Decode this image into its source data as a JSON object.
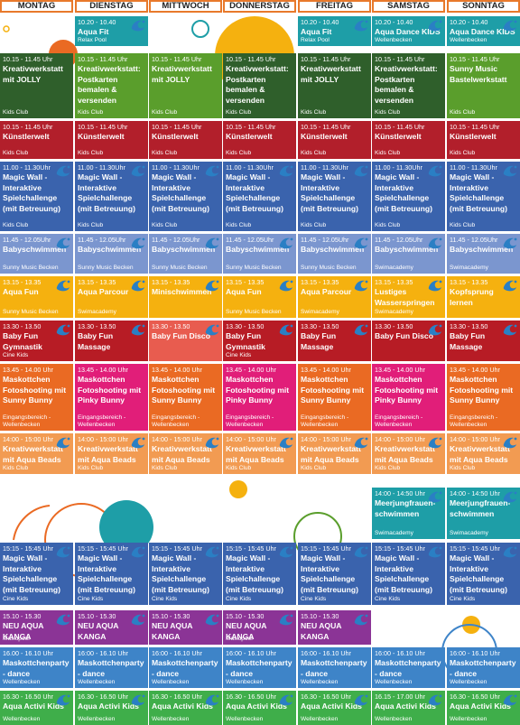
{
  "days": [
    "MONTAG",
    "DIENSTAG",
    "MITTWOCH",
    "DONNERSTAG",
    "FREITAG",
    "SAMSTAG",
    "SONNTAG"
  ],
  "colors": {
    "teal": "#1e9ea7",
    "green": "#5a9e2c",
    "darkgreen": "#2f5f2b",
    "red": "#b21f2b",
    "blue": "#3a63ad",
    "lightblue": "#7b96cf",
    "yellow": "#f5b10f",
    "darkred": "#b71c25",
    "salmon": "#e85c4f",
    "orange": "#ea6a23",
    "pink": "#e11e79",
    "lightorange": "#f29b52",
    "purple": "#8b3496",
    "mblue": "#3e84c8",
    "agreen": "#3fae4a",
    "header_border": "#e8792b"
  },
  "cells": [
    {
      "c": 1,
      "r": 0,
      "time": "10.20 - 10.40",
      "title": "Aqua Fit",
      "loc": "Relax Pool",
      "color": "teal",
      "wave": true
    },
    {
      "c": 4,
      "r": 0,
      "time": "10.20 - 10.40",
      "title": "Aqua Fit",
      "loc": "Relax Pool",
      "color": "teal",
      "wave": true
    },
    {
      "c": 5,
      "r": 0,
      "time": "10.20 - 10.40",
      "title": "Aqua Dance KIDS",
      "loc": "Wellenbecken",
      "color": "teal",
      "wave": true
    },
    {
      "c": 6,
      "r": 0,
      "time": "10.20 - 10.40",
      "title": "Aqua Dance KIDS",
      "loc": "Wellenbecken",
      "color": "teal",
      "wave": true
    },
    {
      "c": 0,
      "r": 1,
      "time": "10.15 - 11.45 Uhr",
      "title": "Kreativwerkstatt mit JOLLY",
      "loc": "Kids Club",
      "color": "darkgreen"
    },
    {
      "c": 1,
      "r": 1,
      "time": "10.15 - 11.45 Uhr",
      "title": "Kreativwerkstatt: Postkarten bemalen & versenden",
      "loc": "Kids Club",
      "color": "green"
    },
    {
      "c": 2,
      "r": 1,
      "time": "10.15 - 11.45 Uhr",
      "title": "Kreativwerkstatt mit JOLLY",
      "loc": "Kids Club",
      "color": "green"
    },
    {
      "c": 3,
      "r": 1,
      "time": "10.15 - 11.45 Uhr",
      "title": "Kreativwerkstatt: Postkarten bemalen & versenden",
      "loc": "Kids Club",
      "color": "darkgreen"
    },
    {
      "c": 4,
      "r": 1,
      "time": "10.15 - 11.45 Uhr",
      "title": "Kreativwerkstatt mit JOLLY",
      "loc": "Kids Club",
      "color": "darkgreen"
    },
    {
      "c": 5,
      "r": 1,
      "time": "10.15 - 11.45 Uhr",
      "title": "Kreativwerkstatt: Postkarten bemalen & versenden",
      "loc": "Kids Club",
      "color": "darkgreen"
    },
    {
      "c": 6,
      "r": 1,
      "time": "10.15 - 11.45 Uhr",
      "title": "Sunny Music Bastelwerkstatt",
      "loc": "Kids Club",
      "color": "green"
    },
    {
      "c": 0,
      "r": 2,
      "time": "10.15 - 11.45 Uhr",
      "title": "Künstlerwelt",
      "loc": "Kids Club",
      "color": "red"
    },
    {
      "c": 1,
      "r": 2,
      "time": "10.15 - 11.45 Uhr",
      "title": "Künstlerwelt",
      "loc": "Kids Club",
      "color": "red"
    },
    {
      "c": 2,
      "r": 2,
      "time": "10.15 - 11.45 Uhr",
      "title": "Künstlerwelt",
      "loc": "Kids Club",
      "color": "red"
    },
    {
      "c": 3,
      "r": 2,
      "time": "10.15 - 11.45 Uhr",
      "title": "Künstlerwelt",
      "loc": "Kids Club",
      "color": "red"
    },
    {
      "c": 4,
      "r": 2,
      "time": "10.15 - 11.45 Uhr",
      "title": "Künstlerwelt",
      "loc": "Kids Club",
      "color": "red"
    },
    {
      "c": 5,
      "r": 2,
      "time": "10.15 - 11.45 Uhr",
      "title": "Künstlerwelt",
      "loc": "Kids Club",
      "color": "red"
    },
    {
      "c": 6,
      "r": 2,
      "time": "10.15 - 11.45 Uhr",
      "title": "Künstlerwelt",
      "loc": "Kids Club",
      "color": "red"
    },
    {
      "c": 0,
      "r": 3,
      "time": "11.00 - 11.30Uhr",
      "title": "Magic Wall - Interaktive Spielchallenge (mit Betreuung)",
      "loc": "Kids Club",
      "color": "blue",
      "wave": true
    },
    {
      "c": 1,
      "r": 3,
      "time": "11.00 - 11.30Uhr",
      "title": "Magic Wall - Interaktive Spielchallenge (mit Betreuung)",
      "loc": "Kids Club",
      "color": "blue",
      "wave": true
    },
    {
      "c": 2,
      "r": 3,
      "time": "11.00 - 11.30Uhr",
      "title": "Magic Wall - Interaktive Spielchallenge (mit Betreuung)",
      "loc": "Kids Club",
      "color": "blue",
      "wave": true
    },
    {
      "c": 3,
      "r": 3,
      "time": "11.00 - 11.30Uhr",
      "title": "Magic Wall - Interaktive Spielchallenge (mit Betreuung)",
      "loc": "Kids Club",
      "color": "blue",
      "wave": true
    },
    {
      "c": 4,
      "r": 3,
      "time": "11.00 - 11.30Uhr",
      "title": "Magic Wall - Interaktive Spielchallenge (mit Betreuung)",
      "loc": "Kids Club",
      "color": "blue",
      "wave": true
    },
    {
      "c": 5,
      "r": 3,
      "time": "11.00 - 11.30Uhr",
      "title": "Magic Wall - Interaktive Spielchallenge (mit Betreuung)",
      "loc": "Kids Club",
      "color": "blue",
      "wave": true
    },
    {
      "c": 6,
      "r": 3,
      "time": "11.00 - 11.30Uhr",
      "title": "Magic Wall - Interaktive Spielchallenge (mit Betreuung)",
      "loc": "Kids Club",
      "color": "blue",
      "wave": true
    },
    {
      "c": 0,
      "r": 4,
      "time": "11.45 - 12.05Uhr",
      "title": "Babyschwimmen",
      "loc": "Sunny Music Becken",
      "color": "lightblue",
      "wave": true
    },
    {
      "c": 1,
      "r": 4,
      "time": "11.45 - 12.05Uhr",
      "title": "Babyschwimmen",
      "loc": "Sunny Music Becken",
      "color": "lightblue",
      "wave": true
    },
    {
      "c": 2,
      "r": 4,
      "time": "11.45 - 12.05Uhr",
      "title": "Babyschwimmen",
      "loc": "Sunny Music Becken",
      "color": "lightblue",
      "wave": true
    },
    {
      "c": 3,
      "r": 4,
      "time": "11.45 - 12.05Uhr",
      "title": "Babyschwimmen",
      "loc": "Sunny Music Becken",
      "color": "lightblue",
      "wave": true
    },
    {
      "c": 4,
      "r": 4,
      "time": "11.45 - 12.05Uhr",
      "title": "Babyschwimmen",
      "loc": "Sunny Music Becken",
      "color": "lightblue",
      "wave": true
    },
    {
      "c": 5,
      "r": 4,
      "time": "11.45 - 12.05Uhr",
      "title": "Babyschwimmen",
      "loc": "Swimacademy",
      "color": "lightblue",
      "wave": true
    },
    {
      "c": 6,
      "r": 4,
      "time": "11.45 - 12.05Uhr",
      "title": "Babyschwimmen",
      "loc": "Swimacademy",
      "color": "lightblue",
      "wave": true
    },
    {
      "c": 0,
      "r": 5,
      "time": "13.15 - 13.35",
      "title": "Aqua Fun",
      "loc": "Sunny Music Becken",
      "color": "yellow",
      "wave": true
    },
    {
      "c": 1,
      "r": 5,
      "time": "13.15 - 13.35",
      "title": "Aqua Parcour",
      "loc": "Swimacademy",
      "color": "yellow",
      "wave": true
    },
    {
      "c": 2,
      "r": 5,
      "time": "13.15 - 13.35",
      "title": "Minischwimmen",
      "loc": "",
      "color": "yellow",
      "wave": true
    },
    {
      "c": 3,
      "r": 5,
      "time": "13.15 - 13.35",
      "title": "Aqua Fun",
      "loc": "Sunny Music Becken",
      "color": "yellow",
      "wave": true
    },
    {
      "c": 4,
      "r": 5,
      "time": "13.15 - 13.35",
      "title": "Aqua Parcour",
      "loc": "Swimacademy",
      "color": "yellow",
      "wave": true
    },
    {
      "c": 5,
      "r": 5,
      "time": "13.15 - 13.35",
      "title": "Lustiges Wasserspringen",
      "loc": "Swimacademy",
      "color": "yellow",
      "wave": true
    },
    {
      "c": 6,
      "r": 5,
      "time": "13.15 - 13.35",
      "title": "Kopfsprung lernen",
      "loc": "",
      "color": "yellow",
      "wave": true
    },
    {
      "c": 0,
      "r": 6,
      "time": "13.30 - 13.50",
      "title": "Baby Fun Gymnastik",
      "loc": "Cine Kids",
      "color": "darkred",
      "wave": true
    },
    {
      "c": 1,
      "r": 6,
      "time": "13.30 - 13.50",
      "title": "Baby Fun Massage",
      "loc": "",
      "color": "darkred",
      "wave": true
    },
    {
      "c": 2,
      "r": 6,
      "time": "13.30 - 13.50",
      "title": "Baby Fun Disco",
      "loc": "",
      "color": "salmon",
      "wave": true
    },
    {
      "c": 3,
      "r": 6,
      "time": "13.30 - 13.50",
      "title": "Baby Fun Gymnastik",
      "loc": "Cine Kids",
      "color": "darkred",
      "wave": true
    },
    {
      "c": 4,
      "r": 6,
      "time": "13.30 - 13.50",
      "title": "Baby Fun Massage",
      "loc": "",
      "color": "darkred",
      "wave": true
    },
    {
      "c": 5,
      "r": 6,
      "time": "13.30 - 13.50",
      "title": "Baby Fun Disco",
      "loc": "",
      "color": "darkred",
      "wave": true
    },
    {
      "c": 6,
      "r": 6,
      "time": "13.30 - 13.50",
      "title": "Baby Fun Massage",
      "loc": "",
      "color": "darkred",
      "wave": true
    },
    {
      "c": 0,
      "r": 7,
      "time": "13.45 - 14.00 Uhr",
      "title": "Maskottchen Fotoshooting mit Sunny Bunny",
      "loc": "Eingangsbereich - Wellenbecken",
      "color": "orange"
    },
    {
      "c": 1,
      "r": 7,
      "time": "13.45 - 14.00 Uhr",
      "title": "Maskottchen Fotoshooting mit Pinky Bunny",
      "loc": "Eingangsbereich - Wellenbecken",
      "color": "pink"
    },
    {
      "c": 2,
      "r": 7,
      "time": "13.45 - 14.00 Uhr",
      "title": "Maskottchen Fotoshooting mit Sunny Bunny",
      "loc": "Eingangsbereich - Wellenbecken",
      "color": "orange"
    },
    {
      "c": 3,
      "r": 7,
      "time": "13.45 - 14.00 Uhr",
      "title": "Maskottchen Fotoshooting mit Pinky Bunny",
      "loc": "Eingangsbereich - Wellenbecken",
      "color": "pink"
    },
    {
      "c": 4,
      "r": 7,
      "time": "13.45 - 14.00 Uhr",
      "title": "Maskottchen Fotoshooting mit Sunny Bunny",
      "loc": "Eingangsbereich - Wellenbecken",
      "color": "orange"
    },
    {
      "c": 5,
      "r": 7,
      "time": "13.45 - 14.00 Uhr",
      "title": "Maskottchen Fotoshooting mit Pinky Bunny",
      "loc": "Eingangsbereich - Wellenbecken",
      "color": "pink"
    },
    {
      "c": 6,
      "r": 7,
      "time": "13.45 - 14.00 Uhr",
      "title": "Maskottchen Fotoshooting mit Sunny Bunny",
      "loc": "Eingangsbereich - Wellenbecken",
      "color": "orange"
    },
    {
      "c": 0,
      "r": 8,
      "time": "14:00 - 15:00 Uhr",
      "title": "Kreativwerkstatt mit Aqua Beads",
      "loc": "Kids Club",
      "color": "lightorange",
      "wave": true
    },
    {
      "c": 1,
      "r": 8,
      "time": "14:00 - 15:00 Uhr",
      "title": "Kreativwerkstatt mit Aqua Beads",
      "loc": "Kids Club",
      "color": "lightorange",
      "wave": true
    },
    {
      "c": 2,
      "r": 8,
      "time": "14:00 - 15:00 Uhr",
      "title": "Kreativwerkstatt mit Aqua Beads",
      "loc": "Kids Club",
      "color": "lightorange",
      "wave": true
    },
    {
      "c": 3,
      "r": 8,
      "time": "14:00 - 15:00 Uhr",
      "title": "Kreativwerkstatt mit Aqua Beads",
      "loc": "Kids Club",
      "color": "lightorange",
      "wave": true
    },
    {
      "c": 4,
      "r": 8,
      "time": "14:00 - 15:00 Uhr",
      "title": "Kreativwerkstatt mit Aqua Beads",
      "loc": "Kids Club",
      "color": "lightorange",
      "wave": true
    },
    {
      "c": 5,
      "r": 8,
      "time": "14:00 - 15:00 Uhr",
      "title": "Kreativwerkstatt mit Aqua Beads",
      "loc": "Kids Club",
      "color": "lightorange",
      "wave": true
    },
    {
      "c": 6,
      "r": 8,
      "time": "14:00 - 15:00 Uhr",
      "title": "Kreativwerkstatt mit Aqua Beads",
      "loc": "Kids Club",
      "color": "lightorange",
      "wave": true
    },
    {
      "c": 5,
      "r": 9,
      "time": "14:00 - 14:50 Uhr",
      "title": "Meerjungfrauen- schwimmen",
      "loc": "Swimacademy",
      "color": "teal",
      "wave": true
    },
    {
      "c": 6,
      "r": 9,
      "time": "14:00 - 14:50 Uhr",
      "title": "Meerjungfrauen- schwimmen",
      "loc": "Swimacademy",
      "color": "teal",
      "wave": true
    },
    {
      "c": 0,
      "r": 10,
      "time": "15:15 - 15:45 Uhr",
      "title": "Magic Wall - Interaktive Spielchallenge (mit Betreuung)",
      "loc": "Cine Kids",
      "color": "blue",
      "wave": true
    },
    {
      "c": 1,
      "r": 10,
      "time": "15:15 - 15:45 Uhr",
      "title": "Magic Wall - Interaktive Spielchallenge (mit Betreuung)",
      "loc": "Cine Kids",
      "color": "blue",
      "wave": true
    },
    {
      "c": 2,
      "r": 10,
      "time": "15:15 - 15:45 Uhr",
      "title": "Magic Wall - Interaktive Spielchallenge (mit Betreuung)",
      "loc": "Cine Kids",
      "color": "blue",
      "wave": true
    },
    {
      "c": 3,
      "r": 10,
      "time": "15:15 - 15:45 Uhr",
      "title": "Magic Wall - Interaktive Spielchallenge (mit Betreuung)",
      "loc": "Cine Kids",
      "color": "blue",
      "wave": true
    },
    {
      "c": 4,
      "r": 10,
      "time": "15:15 - 15:45 Uhr",
      "title": "Magic Wall - Interaktive Spielchallenge (mit Betreuung)",
      "loc": "Cine Kids",
      "color": "blue",
      "wave": true
    },
    {
      "c": 5,
      "r": 10,
      "time": "15:15 - 15:45 Uhr",
      "title": "Magic Wall - Interaktive Spielchallenge (mit Betreuung)",
      "loc": "Cine Kids",
      "color": "blue",
      "wave": true
    },
    {
      "c": 6,
      "r": 10,
      "time": "15:15 - 15:45 Uhr",
      "title": "Magic Wall - Interaktive Spielchallenge (mit Betreuung)",
      "loc": "Cine Kids",
      "color": "blue",
      "wave": true
    },
    {
      "c": 0,
      "r": 11,
      "time": "15.10 - 15.30",
      "title": "NEU AQUA KANGA",
      "loc": "Musicpool",
      "color": "purple",
      "wave": true
    },
    {
      "c": 1,
      "r": 11,
      "time": "15.10 - 15.30",
      "title": "NEU AQUA KANGA",
      "loc": "",
      "color": "purple",
      "wave": true
    },
    {
      "c": 2,
      "r": 11,
      "time": "15.10 - 15.30",
      "title": "NEU AQUA KANGA",
      "loc": "",
      "color": "purple",
      "wave": true
    },
    {
      "c": 3,
      "r": 11,
      "time": "15.10 - 15.30",
      "title": "NEU AQUA KANGA",
      "loc": "Musicpool",
      "color": "purple",
      "wave": true
    },
    {
      "c": 4,
      "r": 11,
      "time": "15.10 - 15.30",
      "title": "NEU AQUA KANGA",
      "loc": "",
      "color": "purple",
      "wave": true
    },
    {
      "c": 0,
      "r": 12,
      "time": "16.00 - 16.10 Uhr",
      "title": "Maskottchenparty - dance",
      "loc": "Wellenbecken",
      "color": "mblue"
    },
    {
      "c": 1,
      "r": 12,
      "time": "16:00 - 16.10 Uhr",
      "title": "Maskottchenparty - dance",
      "loc": "Wellenbecken",
      "color": "mblue"
    },
    {
      "c": 2,
      "r": 12,
      "time": "16:00 - 16.10 Uhr",
      "title": "Maskottchenparty - dance",
      "loc": "Wellenbecken",
      "color": "mblue"
    },
    {
      "c": 3,
      "r": 12,
      "time": "16:00 - 16.10 Uhr",
      "title": "Maskottchenparty - dance",
      "loc": "Wellenbecken",
      "color": "mblue"
    },
    {
      "c": 4,
      "r": 12,
      "time": "16:00 - 16.10 Uhr",
      "title": "Maskottchenparty - dance",
      "loc": "Wellenbecken",
      "color": "mblue"
    },
    {
      "c": 5,
      "r": 12,
      "time": "16:00 - 16.10 Uhr",
      "title": "Maskottchenparty - dance",
      "loc": "Wellenbecken",
      "color": "mblue"
    },
    {
      "c": 6,
      "r": 12,
      "time": "16:00 - 16.10 Uhr",
      "title": "Maskottchenparty - dance",
      "loc": "Wellenbecken",
      "color": "mblue"
    },
    {
      "c": 0,
      "r": 13,
      "time": "16.30 - 16.50 Uhr",
      "title": "Aqua Activi Kids",
      "loc": "Wellenbecken",
      "color": "agreen",
      "wave": true
    },
    {
      "c": 1,
      "r": 13,
      "time": "16.30 - 16.50 Uhr",
      "title": "Aqua Activi Kids",
      "loc": "Wellenbecken",
      "color": "agreen",
      "wave": true
    },
    {
      "c": 2,
      "r": 13,
      "time": "16.30 - 16.50 Uhr",
      "title": "Aqua Activi Kids",
      "loc": "Wellenbecken",
      "color": "agreen",
      "wave": true
    },
    {
      "c": 3,
      "r": 13,
      "time": "16.30 - 16.50 Uhr",
      "title": "Aqua Activi Kids",
      "loc": "Wellenbecken",
      "color": "agreen",
      "wave": true
    },
    {
      "c": 4,
      "r": 13,
      "time": "16.30 - 16.50 Uhr",
      "title": "Aqua Activi Kids",
      "loc": "Wellenbecken",
      "color": "agreen",
      "wave": true
    },
    {
      "c": 5,
      "r": 13,
      "time": "16.15 - 17.00 Uhr",
      "title": "Aqua Activi Kids",
      "loc": "Wellenbecken",
      "color": "agreen",
      "wave": true
    },
    {
      "c": 6,
      "r": 13,
      "time": "16.30 - 16.50 Uhr",
      "title": "Aqua Activi Kids",
      "loc": "Wellenbecken",
      "color": "agreen",
      "wave": true
    }
  ]
}
